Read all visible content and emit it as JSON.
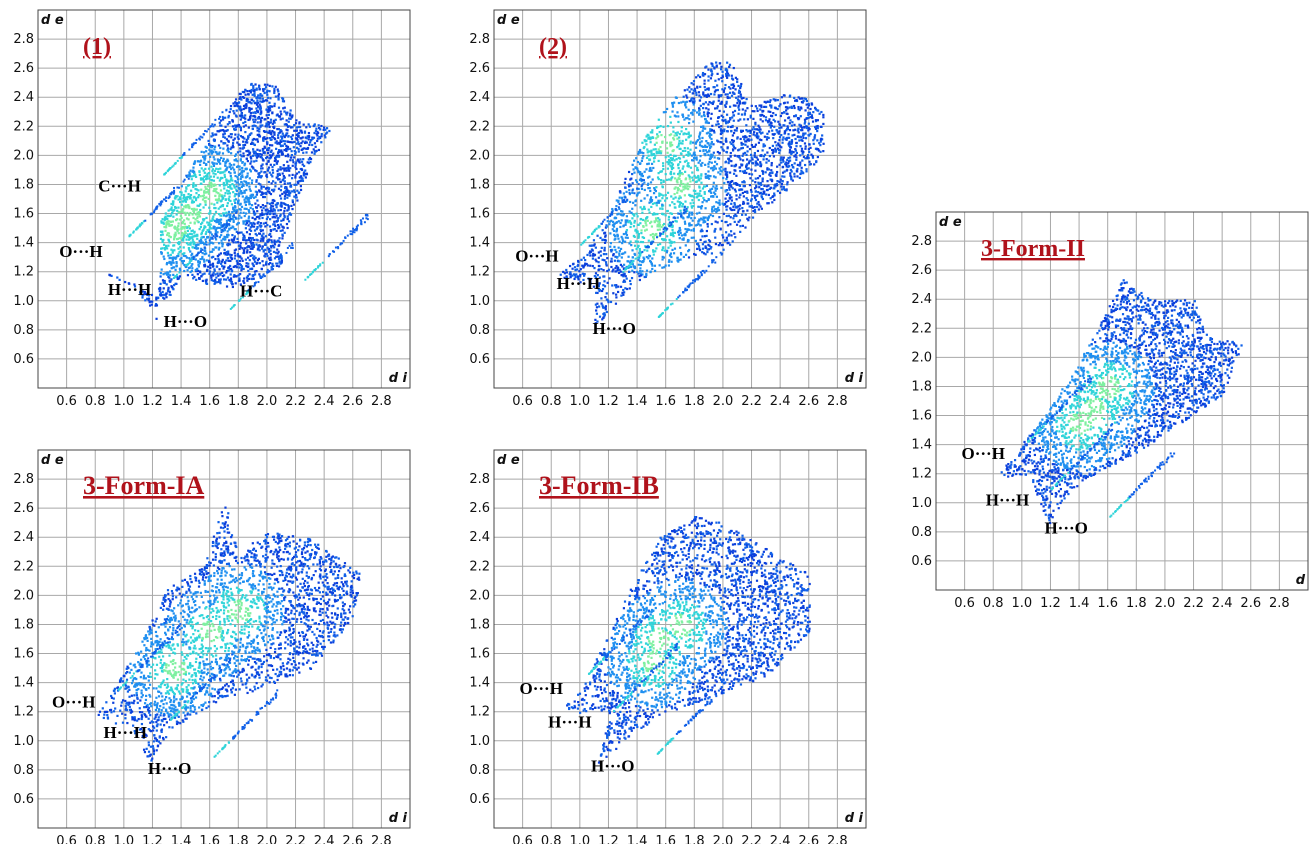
{
  "chart_data": [
    {
      "type": "heatmap",
      "title": "(1)",
      "xlabel": "d i",
      "ylabel": "d e",
      "xlim": [
        0.4,
        3.0
      ],
      "ylim": [
        0.4,
        3.0
      ],
      "x_ticks": [
        "0.6",
        "0.8",
        "1.0",
        "1.2",
        "1.4",
        "1.6",
        "1.8",
        "2.0",
        "2.2",
        "2.4",
        "2.6",
        "2.8"
      ],
      "y_ticks": [
        "0.6",
        "0.8",
        "1.0",
        "1.2",
        "1.4",
        "1.6",
        "1.8",
        "2.0",
        "2.2",
        "2.4",
        "2.6",
        "2.8"
      ],
      "grid": true,
      "region": [
        [
          0.85,
          1.2
        ],
        [
          1.05,
          1.15
        ],
        [
          1.22,
          0.87
        ],
        [
          1.25,
          1.25
        ],
        [
          1.25,
          1.55
        ],
        [
          1.45,
          1.9
        ],
        [
          1.6,
          2.15
        ],
        [
          1.85,
          2.5
        ],
        [
          2.05,
          2.5
        ],
        [
          2.2,
          2.25
        ],
        [
          2.45,
          2.2
        ],
        [
          2.3,
          1.95
        ],
        [
          2.1,
          1.4
        ],
        [
          2.1,
          1.25
        ],
        [
          1.8,
          1.1
        ],
        [
          1.6,
          1.1
        ],
        [
          1.4,
          1.2
        ],
        [
          1.3,
          1.0
        ]
      ],
      "hotspots": [
        [
          1.45,
          1.6
        ],
        [
          1.6,
          1.75
        ],
        [
          1.35,
          1.5
        ]
      ],
      "annotations": [
        {
          "text": "C···H",
          "x": 0.97,
          "y": 1.75
        },
        {
          "text": "O···H",
          "x": 0.7,
          "y": 1.3
        },
        {
          "text": "H···H",
          "x": 1.04,
          "y": 1.04
        },
        {
          "text": "H···C",
          "x": 1.96,
          "y": 1.03
        },
        {
          "text": "H···O",
          "x": 1.43,
          "y": 0.82
        }
      ]
    },
    {
      "type": "heatmap",
      "title": "(2)",
      "xlabel": "d i",
      "ylabel": "d e",
      "xlim": [
        0.4,
        3.0
      ],
      "ylim": [
        0.4,
        3.0
      ],
      "x_ticks": [
        "0.6",
        "0.8",
        "1.0",
        "1.2",
        "1.4",
        "1.6",
        "1.8",
        "2.0",
        "2.2",
        "2.4",
        "2.6",
        "2.8"
      ],
      "y_ticks": [
        "0.6",
        "0.8",
        "1.0",
        "1.2",
        "1.4",
        "1.6",
        "1.8",
        "2.0",
        "2.2",
        "2.4",
        "2.6",
        "2.8"
      ],
      "grid": true,
      "region": [
        [
          0.82,
          1.18
        ],
        [
          1.1,
          1.1
        ],
        [
          1.1,
          0.82
        ],
        [
          1.3,
          1.05
        ],
        [
          1.5,
          1.2
        ],
        [
          1.75,
          1.3
        ],
        [
          2.0,
          1.35
        ],
        [
          2.25,
          1.6
        ],
        [
          2.7,
          2.0
        ],
        [
          2.7,
          2.3
        ],
        [
          2.5,
          2.45
        ],
        [
          2.2,
          2.35
        ],
        [
          2.05,
          2.65
        ],
        [
          1.9,
          2.65
        ],
        [
          1.6,
          2.35
        ],
        [
          1.4,
          2.05
        ],
        [
          1.2,
          1.6
        ],
        [
          1.0,
          1.3
        ]
      ],
      "hotspots": [
        [
          1.5,
          1.5
        ],
        [
          1.7,
          1.8
        ],
        [
          1.6,
          2.1
        ]
      ],
      "annotations": [
        {
          "text": "O···H",
          "x": 0.7,
          "y": 1.27
        },
        {
          "text": "H···H",
          "x": 0.99,
          "y": 1.08
        },
        {
          "text": "H···O",
          "x": 1.24,
          "y": 0.77
        }
      ]
    },
    {
      "type": "heatmap",
      "title": "3-Form-II",
      "xlabel": "d",
      "ylabel": "d e",
      "xlim": [
        0.4,
        3.0
      ],
      "ylim": [
        0.4,
        3.0
      ],
      "x_ticks": [
        "0.6",
        "0.8",
        "1.0",
        "1.2",
        "1.4",
        "1.6",
        "1.8",
        "2.0",
        "2.2",
        "2.4",
        "2.6",
        "2.8"
      ],
      "y_ticks": [
        "0.6",
        "0.8",
        "1.0",
        "1.2",
        "1.4",
        "1.6",
        "1.8",
        "2.0",
        "2.2",
        "2.4",
        "2.6",
        "2.8"
      ],
      "grid": true,
      "region": [
        [
          0.82,
          1.18
        ],
        [
          1.05,
          1.2
        ],
        [
          1.18,
          0.85
        ],
        [
          1.3,
          1.05
        ],
        [
          1.5,
          1.2
        ],
        [
          1.8,
          1.35
        ],
        [
          2.1,
          1.55
        ],
        [
          2.4,
          1.75
        ],
        [
          2.55,
          2.1
        ],
        [
          2.3,
          2.15
        ],
        [
          2.2,
          2.4
        ],
        [
          1.9,
          2.4
        ],
        [
          1.7,
          2.55
        ],
        [
          1.5,
          2.15
        ],
        [
          1.35,
          1.9
        ],
        [
          1.15,
          1.6
        ],
        [
          0.95,
          1.35
        ]
      ],
      "hotspots": [
        [
          1.4,
          1.55
        ],
        [
          1.6,
          1.8
        ],
        [
          1.5,
          1.65
        ]
      ],
      "annotations": [
        {
          "text": "O···H",
          "x": 0.73,
          "y": 1.3
        },
        {
          "text": "H···H",
          "x": 0.9,
          "y": 0.98
        },
        {
          "text": "H···O",
          "x": 1.31,
          "y": 0.79
        }
      ]
    },
    {
      "type": "heatmap",
      "title": "3-Form-IA",
      "xlabel": "d i",
      "ylabel": "d e",
      "xlim": [
        0.4,
        3.0
      ],
      "ylim": [
        0.4,
        3.0
      ],
      "x_ticks": [
        "0.6",
        "0.8",
        "1.0",
        "1.2",
        "1.4",
        "1.6",
        "1.8",
        "2.0",
        "2.2",
        "2.4",
        "2.6",
        "2.8"
      ],
      "y_ticks": [
        "0.6",
        "0.8",
        "1.0",
        "1.2",
        "1.4",
        "1.6",
        "1.8",
        "2.0",
        "2.2",
        "2.4",
        "2.6",
        "2.8"
      ],
      "grid": true,
      "region": [
        [
          0.78,
          1.15
        ],
        [
          1.05,
          1.1
        ],
        [
          1.18,
          0.85
        ],
        [
          1.35,
          1.1
        ],
        [
          1.6,
          1.25
        ],
        [
          1.9,
          1.35
        ],
        [
          2.3,
          1.5
        ],
        [
          2.6,
          1.85
        ],
        [
          2.65,
          2.15
        ],
        [
          2.3,
          2.4
        ],
        [
          2.0,
          2.45
        ],
        [
          1.8,
          2.3
        ],
        [
          1.7,
          2.65
        ],
        [
          1.55,
          2.2
        ],
        [
          1.3,
          2.05
        ],
        [
          1.15,
          1.75
        ],
        [
          0.95,
          1.4
        ]
      ],
      "hotspots": [
        [
          1.35,
          1.5
        ],
        [
          1.6,
          1.75
        ],
        [
          1.8,
          1.9
        ]
      ],
      "annotations": [
        {
          "text": "O···H",
          "x": 0.65,
          "y": 1.23
        },
        {
          "text": "H···H",
          "x": 1.01,
          "y": 1.02
        },
        {
          "text": "H···O",
          "x": 1.32,
          "y": 0.77
        }
      ]
    },
    {
      "type": "heatmap",
      "title": "3-Form-IB",
      "xlabel": "d i",
      "ylabel": "d e",
      "xlim": [
        0.4,
        3.0
      ],
      "ylim": [
        0.4,
        3.0
      ],
      "x_ticks": [
        "0.6",
        "0.8",
        "1.0",
        "1.2",
        "1.4",
        "1.6",
        "1.8",
        "2.0",
        "2.2",
        "2.4",
        "2.6",
        "2.8"
      ],
      "y_ticks": [
        "0.6",
        "0.8",
        "1.0",
        "1.2",
        "1.4",
        "1.6",
        "1.8",
        "2.0",
        "2.2",
        "2.4",
        "2.6",
        "2.8"
      ],
      "grid": true,
      "region": [
        [
          0.85,
          1.2
        ],
        [
          1.2,
          1.2
        ],
        [
          1.12,
          0.83
        ],
        [
          1.35,
          1.05
        ],
        [
          1.6,
          1.2
        ],
        [
          1.9,
          1.3
        ],
        [
          2.3,
          1.45
        ],
        [
          2.6,
          1.75
        ],
        [
          2.6,
          2.15
        ],
        [
          2.35,
          2.3
        ],
        [
          2.0,
          2.5
        ],
        [
          1.8,
          2.55
        ],
        [
          1.55,
          2.4
        ],
        [
          1.35,
          2.05
        ],
        [
          1.15,
          1.65
        ],
        [
          1.0,
          1.35
        ]
      ],
      "hotspots": [
        [
          1.5,
          1.55
        ],
        [
          1.7,
          1.8
        ],
        [
          1.55,
          1.7
        ]
      ],
      "annotations": [
        {
          "text": "O···H",
          "x": 0.73,
          "y": 1.32
        },
        {
          "text": "H···H",
          "x": 0.93,
          "y": 1.09
        },
        {
          "text": "H···O",
          "x": 1.23,
          "y": 0.79
        }
      ]
    }
  ]
}
